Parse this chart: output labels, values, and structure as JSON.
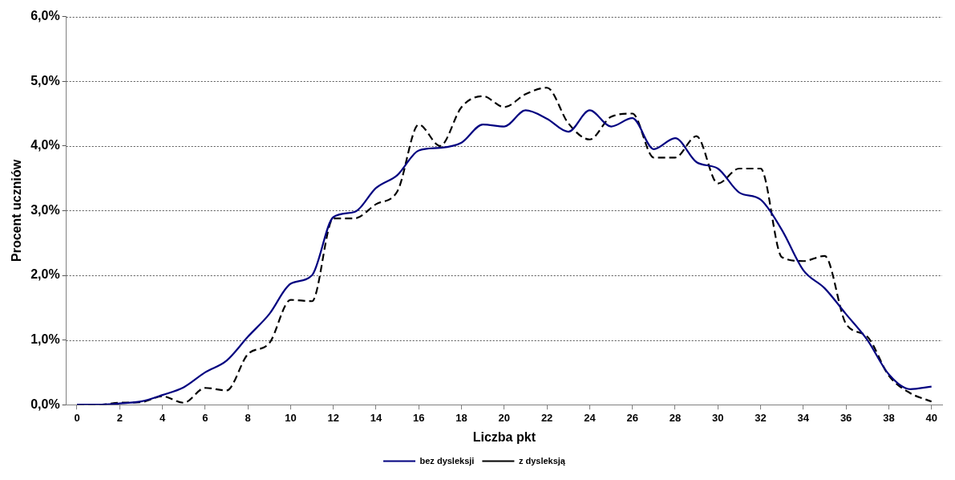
{
  "chart_data": {
    "type": "line",
    "xlabel": "Liczba pkt",
    "ylabel": "Procent uczniów",
    "x": [
      0,
      1,
      2,
      3,
      4,
      5,
      6,
      7,
      8,
      9,
      10,
      11,
      12,
      13,
      14,
      15,
      16,
      17,
      18,
      19,
      20,
      21,
      22,
      23,
      24,
      25,
      26,
      27,
      28,
      29,
      30,
      31,
      32,
      33,
      34,
      35,
      36,
      37,
      38,
      39,
      40
    ],
    "xlim": [
      -0.5,
      40.5
    ],
    "xticks": [
      0,
      2,
      4,
      6,
      8,
      10,
      12,
      14,
      16,
      18,
      20,
      22,
      24,
      26,
      28,
      30,
      32,
      34,
      36,
      38,
      40
    ],
    "series": [
      {
        "name": "bez dysleksji",
        "color": "#000080",
        "line_style": "solid",
        "values": [
          0,
          0,
          0.02,
          0.05,
          0.15,
          0.27,
          0.5,
          0.68,
          1.05,
          1.4,
          1.87,
          2.0,
          2.9,
          2.98,
          3.35,
          3.55,
          3.93,
          3.97,
          4.05,
          4.33,
          4.3,
          4.55,
          4.42,
          4.22,
          4.55,
          4.3,
          4.43,
          3.95,
          4.12,
          3.75,
          3.65,
          3.28,
          3.17,
          2.7,
          2.08,
          1.8,
          1.4,
          1.0,
          0.47,
          0.24,
          0.28
        ]
      },
      {
        "name": "z dysleksją",
        "color": "#000000",
        "line_style": "dashed",
        "values": [
          0,
          0,
          0.03,
          0.04,
          0.13,
          0.03,
          0.26,
          0.22,
          0.78,
          0.95,
          1.62,
          1.6,
          2.88,
          2.88,
          3.1,
          3.3,
          4.33,
          4.0,
          4.6,
          4.77,
          4.6,
          4.8,
          4.9,
          4.35,
          4.1,
          4.45,
          4.5,
          3.82,
          3.82,
          4.15,
          3.42,
          3.65,
          3.65,
          2.28,
          2.22,
          2.3,
          1.25,
          1.05,
          0.45,
          0.18,
          0.05
        ]
      }
    ],
    "ylim": [
      0,
      6
    ],
    "yticks": [
      {
        "value": 0,
        "label": "0,0%"
      },
      {
        "value": 1,
        "label": "1,0%"
      },
      {
        "value": 2,
        "label": "2,0%"
      },
      {
        "value": 3,
        "label": "3,0%"
      },
      {
        "value": 4,
        "label": "4,0%"
      },
      {
        "value": 5,
        "label": "5,0%"
      },
      {
        "value": 6,
        "label": "6,0%"
      }
    ],
    "grid": "y",
    "legend": "bottom",
    "marker": "none"
  }
}
